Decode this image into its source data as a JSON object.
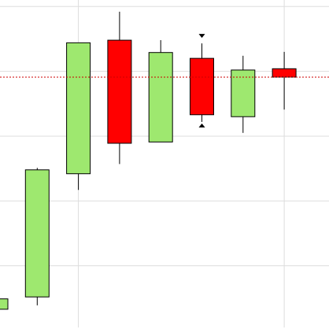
{
  "chart_data": {
    "type": "candlestick",
    "categories": [
      null,
      null,
      null,
      null,
      null,
      null,
      null,
      null
    ],
    "open": [
      3.3,
      5.2,
      24.2,
      44.8,
      29.1,
      42.0,
      33.0,
      40.4
    ],
    "high": [
      4.9,
      25.1,
      44.4,
      49.2,
      44.8,
      44.3,
      42.4,
      43.0
    ],
    "low": [
      3.3,
      3.9,
      21.7,
      25.7,
      29.1,
      32.2,
      30.5,
      34.1
    ],
    "close": [
      4.9,
      24.8,
      44.4,
      28.9,
      42.9,
      33.3,
      40.2,
      39.1
    ],
    "up_color": "#9ee86f",
    "down_color": "#ff0000",
    "last_price": 39.1,
    "last_price_color": "#cc0000",
    "ylim": [
      0,
      51
    ],
    "yticks": [
      10,
      20,
      30,
      40,
      50
    ],
    "grid": true
  }
}
